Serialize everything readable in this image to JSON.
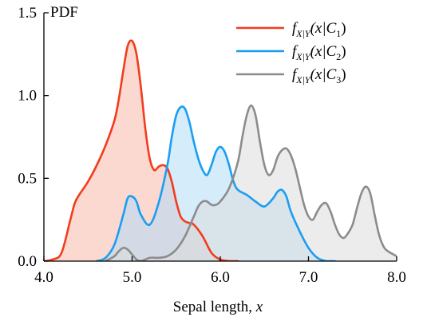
{
  "chart_data": {
    "type": "area",
    "xlabel_prefix": "Sepal length, ",
    "xlabel_var": "x",
    "ylabel": "PDF",
    "xlim": [
      4.0,
      8.0
    ],
    "ylim": [
      0.0,
      1.5
    ],
    "xticks": [
      "4.0",
      "5.0",
      "6.0",
      "7.0",
      "8.0"
    ],
    "yticks": [
      "0.0",
      "0.5",
      "1.0",
      "1.5"
    ],
    "legend_position": "top-right",
    "series": [
      {
        "name": "f_{X|Y}(x|C_1)",
        "legend": {
          "f": "f",
          "sub": "X|Y",
          "open": "(x|C",
          "csub": "1",
          "close": ")"
        },
        "color": "#f23c1b",
        "fill": "#f7b8a9",
        "x": [
          4.0,
          4.1,
          4.2,
          4.3,
          4.35,
          4.4,
          4.5,
          4.6,
          4.7,
          4.8,
          4.85,
          4.9,
          4.95,
          5.0,
          5.05,
          5.1,
          5.15,
          5.2,
          5.25,
          5.3,
          5.35,
          5.4,
          5.45,
          5.5,
          5.55,
          5.6,
          5.65,
          5.7,
          5.8,
          5.9,
          6.0,
          6.1,
          6.2
        ],
        "y": [
          0.0,
          0.01,
          0.05,
          0.25,
          0.35,
          0.4,
          0.48,
          0.58,
          0.7,
          0.85,
          0.98,
          1.15,
          1.3,
          1.33,
          1.25,
          1.05,
          0.8,
          0.62,
          0.55,
          0.57,
          0.58,
          0.56,
          0.48,
          0.36,
          0.27,
          0.24,
          0.23,
          0.22,
          0.15,
          0.05,
          0.01,
          0.0,
          0.0
        ]
      },
      {
        "name": "f_{X|Y}(x|C_2)",
        "legend": {
          "f": "f",
          "sub": "X|Y",
          "open": "(x|C",
          "csub": "2",
          "close": ")"
        },
        "color": "#1a9ef2",
        "fill": "#b3dcf6",
        "x": [
          4.6,
          4.7,
          4.8,
          4.9,
          4.95,
          5.0,
          5.05,
          5.1,
          5.2,
          5.3,
          5.4,
          5.45,
          5.5,
          5.55,
          5.6,
          5.65,
          5.7,
          5.75,
          5.8,
          5.85,
          5.9,
          5.95,
          6.0,
          6.05,
          6.1,
          6.15,
          6.2,
          6.3,
          6.4,
          6.5,
          6.6,
          6.65,
          6.7,
          6.75,
          6.8,
          6.9,
          7.0,
          7.1,
          7.2,
          7.3
        ],
        "y": [
          0.0,
          0.02,
          0.1,
          0.28,
          0.38,
          0.39,
          0.36,
          0.28,
          0.22,
          0.35,
          0.58,
          0.75,
          0.88,
          0.93,
          0.92,
          0.84,
          0.72,
          0.62,
          0.55,
          0.52,
          0.58,
          0.66,
          0.69,
          0.66,
          0.58,
          0.48,
          0.43,
          0.4,
          0.36,
          0.33,
          0.38,
          0.42,
          0.43,
          0.39,
          0.3,
          0.18,
          0.08,
          0.02,
          0.0,
          0.0
        ]
      },
      {
        "name": "f_{X|Y}(x|C_3)",
        "legend": {
          "f": "f",
          "sub": "X|Y",
          "open": "(x|C",
          "csub": "3",
          "close": ")"
        },
        "color": "#8c8c8c",
        "fill": "#dcdcdc",
        "x": [
          4.7,
          4.8,
          4.85,
          4.9,
          4.95,
          5.0,
          5.05,
          5.1,
          5.2,
          5.3,
          5.4,
          5.5,
          5.6,
          5.7,
          5.75,
          5.8,
          5.85,
          5.9,
          5.95,
          6.0,
          6.1,
          6.2,
          6.25,
          6.3,
          6.35,
          6.4,
          6.45,
          6.5,
          6.55,
          6.6,
          6.65,
          6.7,
          6.75,
          6.8,
          6.85,
          6.9,
          6.95,
          7.0,
          7.05,
          7.1,
          7.15,
          7.2,
          7.25,
          7.3,
          7.35,
          7.4,
          7.45,
          7.5,
          7.55,
          7.6,
          7.65,
          7.7,
          7.75,
          7.8,
          7.85,
          7.9,
          8.0
        ],
        "y": [
          0.0,
          0.03,
          0.06,
          0.08,
          0.07,
          0.04,
          0.01,
          0.0,
          0.02,
          0.02,
          0.03,
          0.07,
          0.15,
          0.27,
          0.33,
          0.36,
          0.36,
          0.34,
          0.34,
          0.36,
          0.44,
          0.6,
          0.75,
          0.88,
          0.94,
          0.88,
          0.72,
          0.58,
          0.52,
          0.55,
          0.63,
          0.67,
          0.68,
          0.64,
          0.56,
          0.45,
          0.34,
          0.27,
          0.25,
          0.3,
          0.34,
          0.35,
          0.3,
          0.22,
          0.16,
          0.14,
          0.17,
          0.22,
          0.32,
          0.41,
          0.45,
          0.41,
          0.28,
          0.16,
          0.09,
          0.06,
          0.03
        ]
      }
    ]
  }
}
